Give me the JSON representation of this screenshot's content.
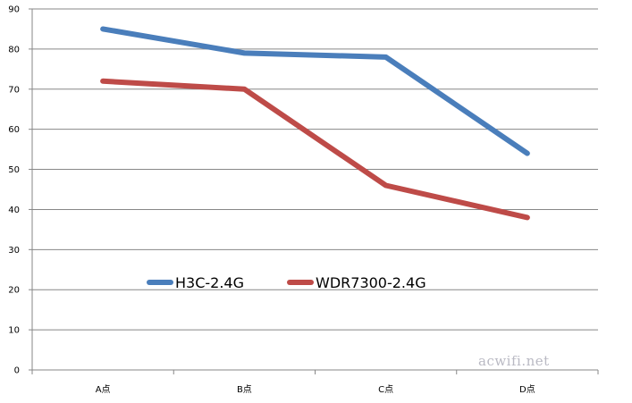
{
  "chart_data": {
    "type": "line",
    "categories": [
      "A点",
      "B点",
      "C点",
      "D点"
    ],
    "ylim": [
      0,
      90
    ],
    "yticks": [
      0,
      10,
      20,
      30,
      40,
      50,
      60,
      70,
      80,
      90
    ],
    "grid": true,
    "legend_position": "center-left",
    "series": [
      {
        "name": "H3C-2.4G",
        "color": "#4a7ebb",
        "values": [
          85,
          79,
          78,
          54
        ]
      },
      {
        "name": "WDR7300-2.4G",
        "color": "#be4b48",
        "values": [
          72,
          70,
          46,
          38
        ]
      }
    ]
  },
  "watermark": "acwifi.net"
}
